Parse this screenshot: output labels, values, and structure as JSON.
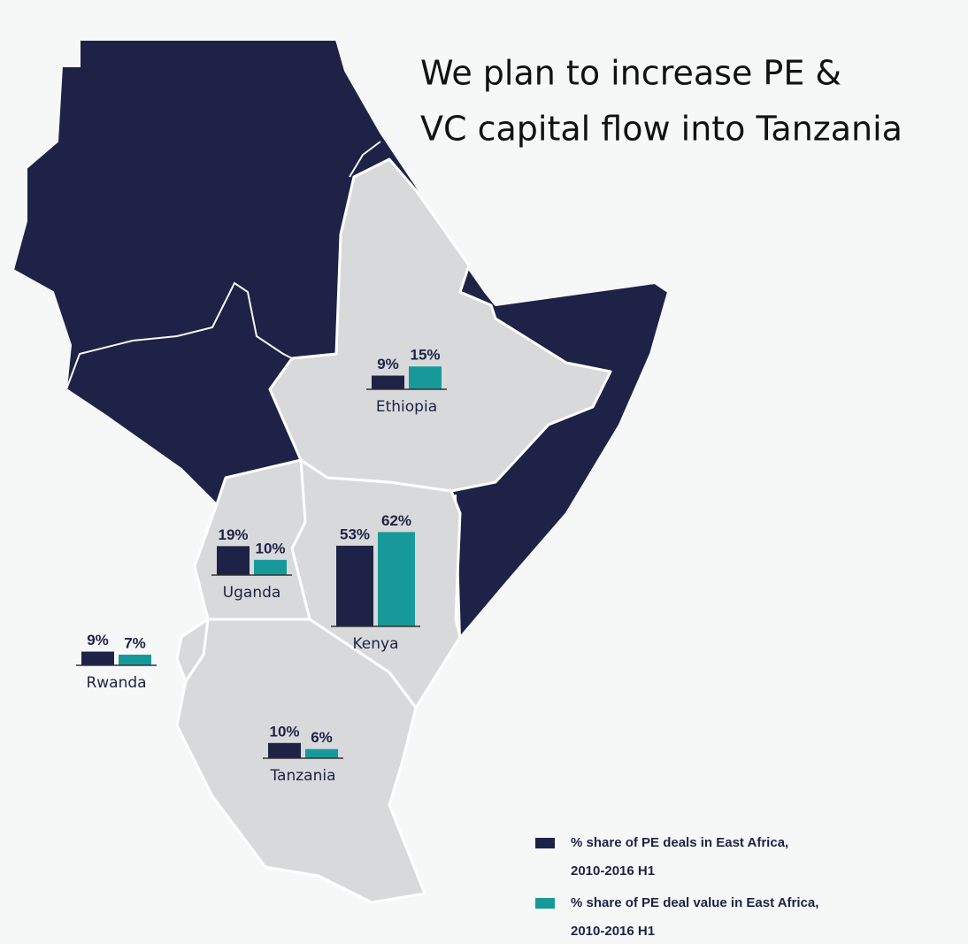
{
  "title": [
    "We plan to increase PE &",
    "VC capital flow into Tanzania"
  ],
  "colors": [
    "#1e2246",
    "#17999a"
  ],
  "countries": [
    {
      "name": "Ethiopia",
      "values": [
        9,
        15
      ],
      "value_labels": [
        "9%",
        "15%"
      ]
    },
    {
      "name": "Uganda",
      "values": [
        19,
        10
      ],
      "value_labels": [
        "19%",
        "10%"
      ]
    },
    {
      "name": "Kenya",
      "values": [
        53,
        62
      ],
      "value_labels": [
        "53%",
        "62%"
      ]
    },
    {
      "name": "Rwanda",
      "values": [
        9,
        7
      ],
      "value_labels": [
        "9%",
        "7%"
      ]
    },
    {
      "name": "Tanzania",
      "values": [
        10,
        6
      ],
      "value_labels": [
        "10%",
        "6%"
      ]
    }
  ],
  "legend": [
    {
      "lines": [
        "% share of PE deals in East Africa,",
        "2010-2016 H1"
      ]
    },
    {
      "lines": [
        "% share of PE deal value in East Africa,",
        "2010-2016 H1"
      ]
    }
  ]
}
